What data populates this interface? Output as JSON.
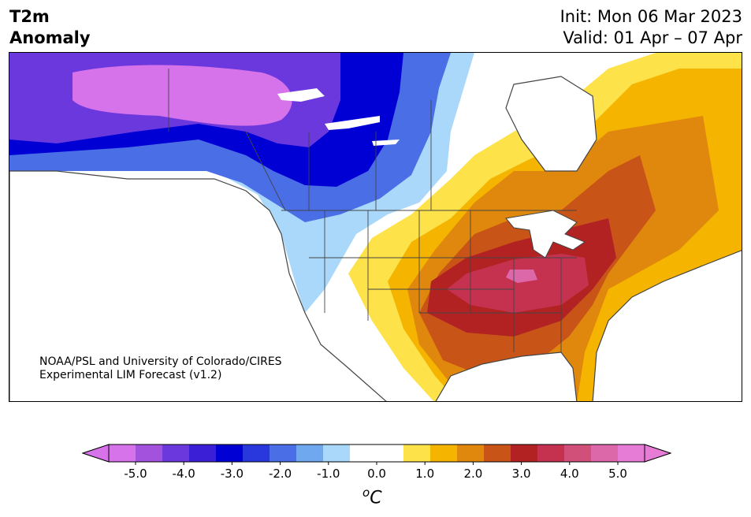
{
  "header": {
    "variable": "T2m",
    "field": "Anomaly",
    "init": "Init: Mon 06 Mar 2023",
    "valid": "Valid: 01 Apr – 07 Apr"
  },
  "credit": {
    "line1": "NOAA/PSL and University of Colorado/CIRES",
    "line2": "Experimental LIM Forecast (v1.2)"
  },
  "colorbar": {
    "unit": "°C",
    "unit_symbol": "o",
    "unit_letter": "C",
    "ticks": [
      "-5.0",
      "-4.0",
      "-3.0",
      "-2.0",
      "-1.0",
      "0.0",
      "1.0",
      "2.0",
      "3.0",
      "4.0",
      "5.0"
    ],
    "colors": [
      "#d672ea",
      "#a252dc",
      "#6a38dc",
      "#3a1fd6",
      "#0000d4",
      "#2838dc",
      "#4a6ee6",
      "#70a8f0",
      "#aad8fa",
      "#ffffff",
      "#ffffff",
      "#fde24a",
      "#f4b400",
      "#e0880e",
      "#c85418",
      "#b22222",
      "#c43250",
      "#d0507a",
      "#dc68aa",
      "#e67cd6"
    ],
    "extend_low_color": "#d672ea",
    "extend_high_color": "#e67cd6"
  },
  "map": {
    "land_outline_color": "#444444",
    "anomaly_colors": {
      "cold_max": "#d672ea",
      "cold_3": "#6a38dc",
      "cold_2": "#0000d4",
      "cold_1": "#4a6ee6",
      "cool": "#aad8fa",
      "warm_1": "#fde24a",
      "warm_2": "#f4b400",
      "warm_3": "#e0880e",
      "warm_4": "#c85418",
      "warm_5": "#b22222",
      "hot": "#c43250",
      "hot_max": "#dc68aa"
    }
  }
}
